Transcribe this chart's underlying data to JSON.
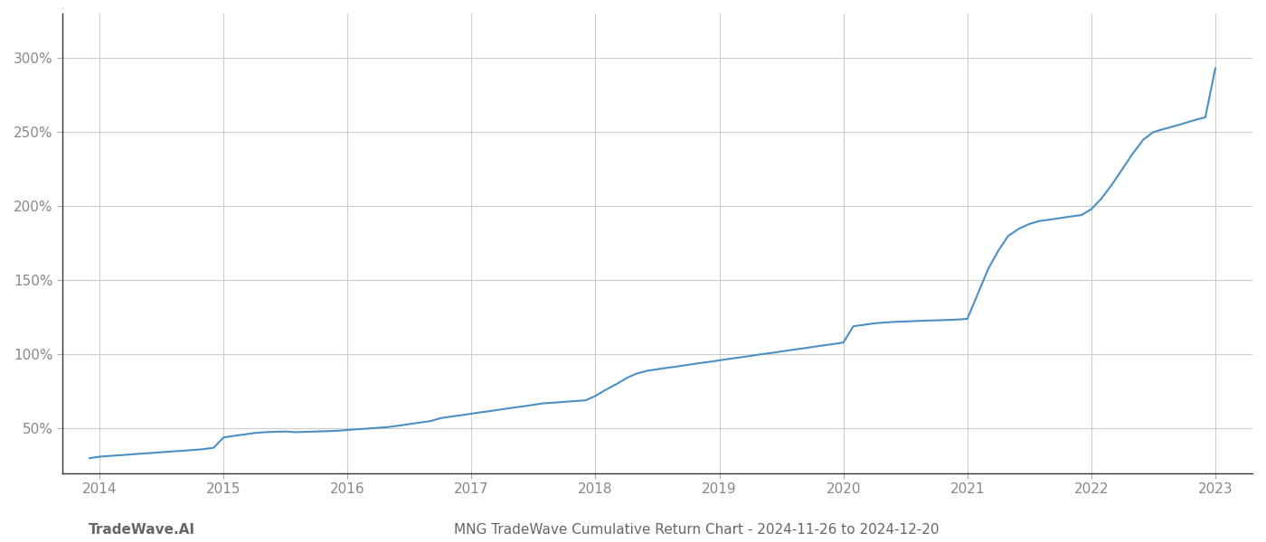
{
  "title": "MNG TradeWave Cumulative Return Chart - 2024-11-26 to 2024-12-20",
  "watermark": "TradeWave.AI",
  "line_color": "#4a90c4",
  "background_color": "#ffffff",
  "grid_color": "#cccccc",
  "x_years": [
    2014,
    2015,
    2016,
    2017,
    2018,
    2019,
    2020,
    2021,
    2022,
    2023
  ],
  "x_data": [
    2013.92,
    2014.0,
    2014.08,
    2014.17,
    2014.25,
    2014.33,
    2014.42,
    2014.5,
    2014.58,
    2014.67,
    2014.75,
    2014.83,
    2014.92,
    2015.0,
    2015.08,
    2015.17,
    2015.25,
    2015.33,
    2015.42,
    2015.5,
    2015.58,
    2015.67,
    2015.75,
    2015.83,
    2015.92,
    2016.0,
    2016.08,
    2016.17,
    2016.25,
    2016.33,
    2016.42,
    2016.5,
    2016.58,
    2016.67,
    2016.75,
    2016.83,
    2016.92,
    2017.0,
    2017.08,
    2017.17,
    2017.25,
    2017.33,
    2017.42,
    2017.5,
    2017.58,
    2017.67,
    2017.75,
    2017.83,
    2017.92,
    2018.0,
    2018.08,
    2018.17,
    2018.25,
    2018.33,
    2018.42,
    2018.5,
    2018.58,
    2018.67,
    2018.75,
    2018.83,
    2018.92,
    2019.0,
    2019.08,
    2019.17,
    2019.25,
    2019.33,
    2019.42,
    2019.5,
    2019.58,
    2019.67,
    2019.75,
    2019.83,
    2019.92,
    2020.0,
    2020.08,
    2020.17,
    2020.25,
    2020.33,
    2020.42,
    2020.5,
    2020.58,
    2020.67,
    2020.75,
    2020.83,
    2020.92,
    2021.0,
    2021.08,
    2021.17,
    2021.25,
    2021.33,
    2021.42,
    2021.5,
    2021.58,
    2021.67,
    2021.75,
    2021.83,
    2021.92,
    2022.0,
    2022.08,
    2022.17,
    2022.25,
    2022.33,
    2022.42,
    2022.5,
    2022.58,
    2022.67,
    2022.75,
    2022.83,
    2022.92,
    2023.0
  ],
  "y_data": [
    30,
    31,
    31.5,
    32,
    32.5,
    33,
    33.5,
    34,
    34.5,
    35,
    35.5,
    36,
    37,
    44,
    45,
    46,
    47,
    47.5,
    47.8,
    48,
    47.5,
    47.8,
    48,
    48.2,
    48.5,
    49,
    49.5,
    50,
    50.5,
    51,
    52,
    53,
    54,
    55,
    57,
    58,
    59,
    60,
    61,
    62,
    63,
    64,
    65,
    66,
    67,
    67.5,
    68,
    68.5,
    69,
    72,
    76,
    80,
    84,
    87,
    89,
    90,
    91,
    92,
    93,
    94,
    95,
    96,
    97,
    98,
    99,
    100,
    101,
    102,
    103,
    104,
    105,
    106,
    107,
    108,
    119,
    120,
    121,
    121.5,
    122,
    122.2,
    122.5,
    122.8,
    123,
    123.2,
    123.5,
    124,
    140,
    158,
    170,
    180,
    185,
    188,
    190,
    191,
    192,
    193,
    194,
    198,
    205,
    215,
    225,
    235,
    245,
    250,
    252,
    254,
    256,
    258,
    260,
    293
  ],
  "ylim": [
    20,
    330
  ],
  "yticks": [
    50,
    100,
    150,
    200,
    250,
    300
  ],
  "xlim": [
    2013.7,
    2023.3
  ],
  "line_width": 1.5,
  "title_fontsize": 11,
  "tick_fontsize": 11,
  "watermark_fontsize": 11,
  "title_color": "#666666",
  "tick_color": "#888888",
  "spine_color": "#aaaaaa",
  "left_spine_color": "#333333"
}
